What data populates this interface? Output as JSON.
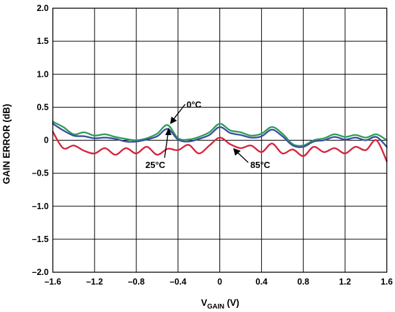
{
  "chart_data": {
    "type": "line",
    "xlabel": {
      "main": "V",
      "sub": "GAIN",
      "unit": " (V)"
    },
    "ylabel": "GAIN ERROR (dB)",
    "xlim": [
      -1.6,
      1.6
    ],
    "ylim": [
      -2.0,
      2.0
    ],
    "x_ticks": [
      -1.6,
      -1.2,
      -0.8,
      -0.4,
      0,
      0.4,
      0.8,
      1.2,
      1.6
    ],
    "x_tick_labels": [
      "–1.6",
      "–1.2",
      "–0.8",
      "–0.4",
      "0",
      "0.4",
      "0.8",
      "1.2",
      "1.6"
    ],
    "y_ticks": [
      2.0,
      1.5,
      1.0,
      0.5,
      0,
      -0.5,
      -1.0,
      -1.5,
      -2.0
    ],
    "y_tick_labels": [
      "2.0",
      "1.5",
      "1.0",
      "0.5",
      "0",
      "–0.5",
      "–1.0",
      "–1.5",
      "–2.0"
    ],
    "grid": true,
    "x": [
      -1.6,
      -1.5,
      -1.4,
      -1.3,
      -1.2,
      -1.1,
      -1.0,
      -0.9,
      -0.8,
      -0.7,
      -0.6,
      -0.5,
      -0.4,
      -0.3,
      -0.2,
      -0.1,
      0,
      0.1,
      0.2,
      0.3,
      0.4,
      0.5,
      0.6,
      0.7,
      0.8,
      0.9,
      1.0,
      1.1,
      1.2,
      1.3,
      1.4,
      1.5,
      1.6
    ],
    "series": [
      {
        "name": "0°C",
        "color": "#2e9e5b",
        "values": [
          0.28,
          0.2,
          0.09,
          0.12,
          0.07,
          0.09,
          0.05,
          0.02,
          0.0,
          0.03,
          0.1,
          0.23,
          0.03,
          0.01,
          0.05,
          0.12,
          0.25,
          0.15,
          0.12,
          0.07,
          0.1,
          0.2,
          0.1,
          -0.06,
          -0.08,
          0.0,
          0.03,
          0.09,
          0.05,
          0.08,
          0.04,
          0.09,
          0.0
        ]
      },
      {
        "name": "25°C",
        "color": "#3d4f9f",
        "values": [
          0.25,
          0.15,
          0.07,
          0.06,
          0.03,
          0.04,
          0.02,
          -0.02,
          -0.02,
          0.01,
          0.06,
          0.17,
          0.01,
          -0.02,
          0.02,
          0.08,
          0.2,
          0.11,
          0.08,
          0.04,
          0.06,
          0.16,
          0.06,
          -0.08,
          -0.1,
          -0.02,
          0.0,
          0.05,
          0.01,
          0.04,
          0.0,
          0.05,
          -0.1
        ]
      },
      {
        "name": "85°C",
        "color": "#d6243c",
        "values": [
          0.13,
          -0.12,
          -0.08,
          -0.16,
          -0.2,
          -0.12,
          -0.22,
          -0.12,
          -0.2,
          -0.1,
          -0.22,
          -0.13,
          -0.15,
          -0.07,
          -0.2,
          -0.08,
          0.04,
          -0.06,
          -0.12,
          -0.08,
          -0.18,
          -0.05,
          -0.2,
          -0.14,
          -0.24,
          -0.1,
          -0.18,
          -0.12,
          -0.2,
          -0.1,
          -0.15,
          0.0,
          -0.32
        ]
      }
    ],
    "annotations": [
      {
        "text": "0°C",
        "series": "0°C"
      },
      {
        "text": "25°C",
        "series": "25°C"
      },
      {
        "text": "85°C",
        "series": "85°C"
      }
    ]
  }
}
